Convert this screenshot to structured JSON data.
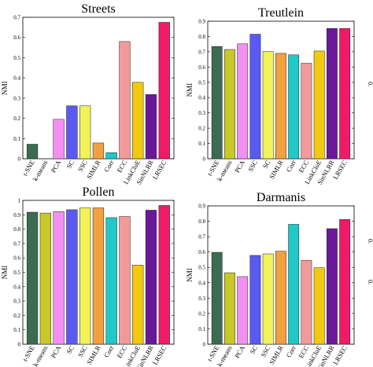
{
  "colors": [
    "#3b6b52",
    "#c8c828",
    "#f290f2",
    "#5a5af2",
    "#f2f25a",
    "#f2a040",
    "#20c8c8",
    "#f29a9a",
    "#f2c810",
    "#6a189a",
    "#f01a68"
  ],
  "edge_labels": [
    "0.",
    "0.",
    "0."
  ],
  "chart_data": [
    {
      "type": "bar",
      "title": "Streets",
      "ylabel": "NMI",
      "ylim": [
        0,
        0.7
      ],
      "yticks": [
        "0",
        "0.1",
        "0.2",
        "0.3",
        "0.4",
        "0.5",
        "0.6",
        "0.7"
      ],
      "categories": [
        "t-SNE",
        "k-means",
        "PCA",
        "SC",
        "SSC",
        "SIMLR",
        "Corr",
        "ECC",
        "LinkCluE",
        "SinNLRR",
        "LRSEC"
      ],
      "values": [
        0.072,
        0.0,
        0.195,
        0.262,
        0.262,
        0.078,
        0.03,
        0.58,
        0.378,
        0.318,
        0.675
      ]
    },
    {
      "type": "bar",
      "title": "Treutlein",
      "ylabel": "NMI",
      "ylim": [
        0,
        0.9
      ],
      "yticks": [
        "0",
        "0.1",
        "0.2",
        "0.3",
        "0.4",
        "0.5",
        "0.6",
        "0.7",
        "0.8",
        "0.9"
      ],
      "categories": [
        "t-SNE",
        "k-means",
        "PCA",
        "SSC",
        "SC",
        "SIMLR",
        "Corr",
        "ECC",
        "LinkCluE",
        "SinNLRR",
        "LRSEC"
      ],
      "values": [
        0.735,
        0.715,
        0.752,
        0.815,
        0.702,
        0.69,
        0.68,
        0.625,
        0.705,
        0.853,
        0.853
      ]
    },
    {
      "type": "bar",
      "title": "Pollen",
      "ylabel": "NMI",
      "ylim": [
        0,
        1
      ],
      "yticks": [
        "0",
        "0.1",
        "0.2",
        "0.3",
        "0.4",
        "0.5",
        "0.6",
        "0.7",
        "0.8",
        "0.9",
        "1"
      ],
      "categories": [
        "t-SNE",
        "k-means",
        "PCA",
        "SC",
        "SSC",
        "SIMLR",
        "Corr",
        "ECC",
        "LinkCluE",
        "SinNLRR",
        "LRSEC"
      ],
      "values": [
        0.918,
        0.912,
        0.922,
        0.935,
        0.948,
        0.948,
        0.88,
        0.888,
        0.55,
        0.932,
        0.965
      ]
    },
    {
      "type": "bar",
      "title": "Darmanis",
      "ylabel": "NMI",
      "ylim": [
        0,
        0.9
      ],
      "yticks": [
        "0",
        "0.1",
        "0.2",
        "0.3",
        "0.4",
        "0.5",
        "0.6",
        "0.7",
        "0.8",
        "0.9"
      ],
      "categories": [
        "t-SNE",
        "k-means",
        "PCA",
        "SC",
        "SSC",
        "SIMLR",
        "Corr",
        "ECC",
        "LinkCluE",
        "SinNLRR",
        "LRSEC"
      ],
      "values": [
        0.598,
        0.465,
        0.44,
        0.578,
        0.588,
        0.605,
        0.78,
        0.545,
        0.498,
        0.752,
        0.812
      ]
    }
  ]
}
